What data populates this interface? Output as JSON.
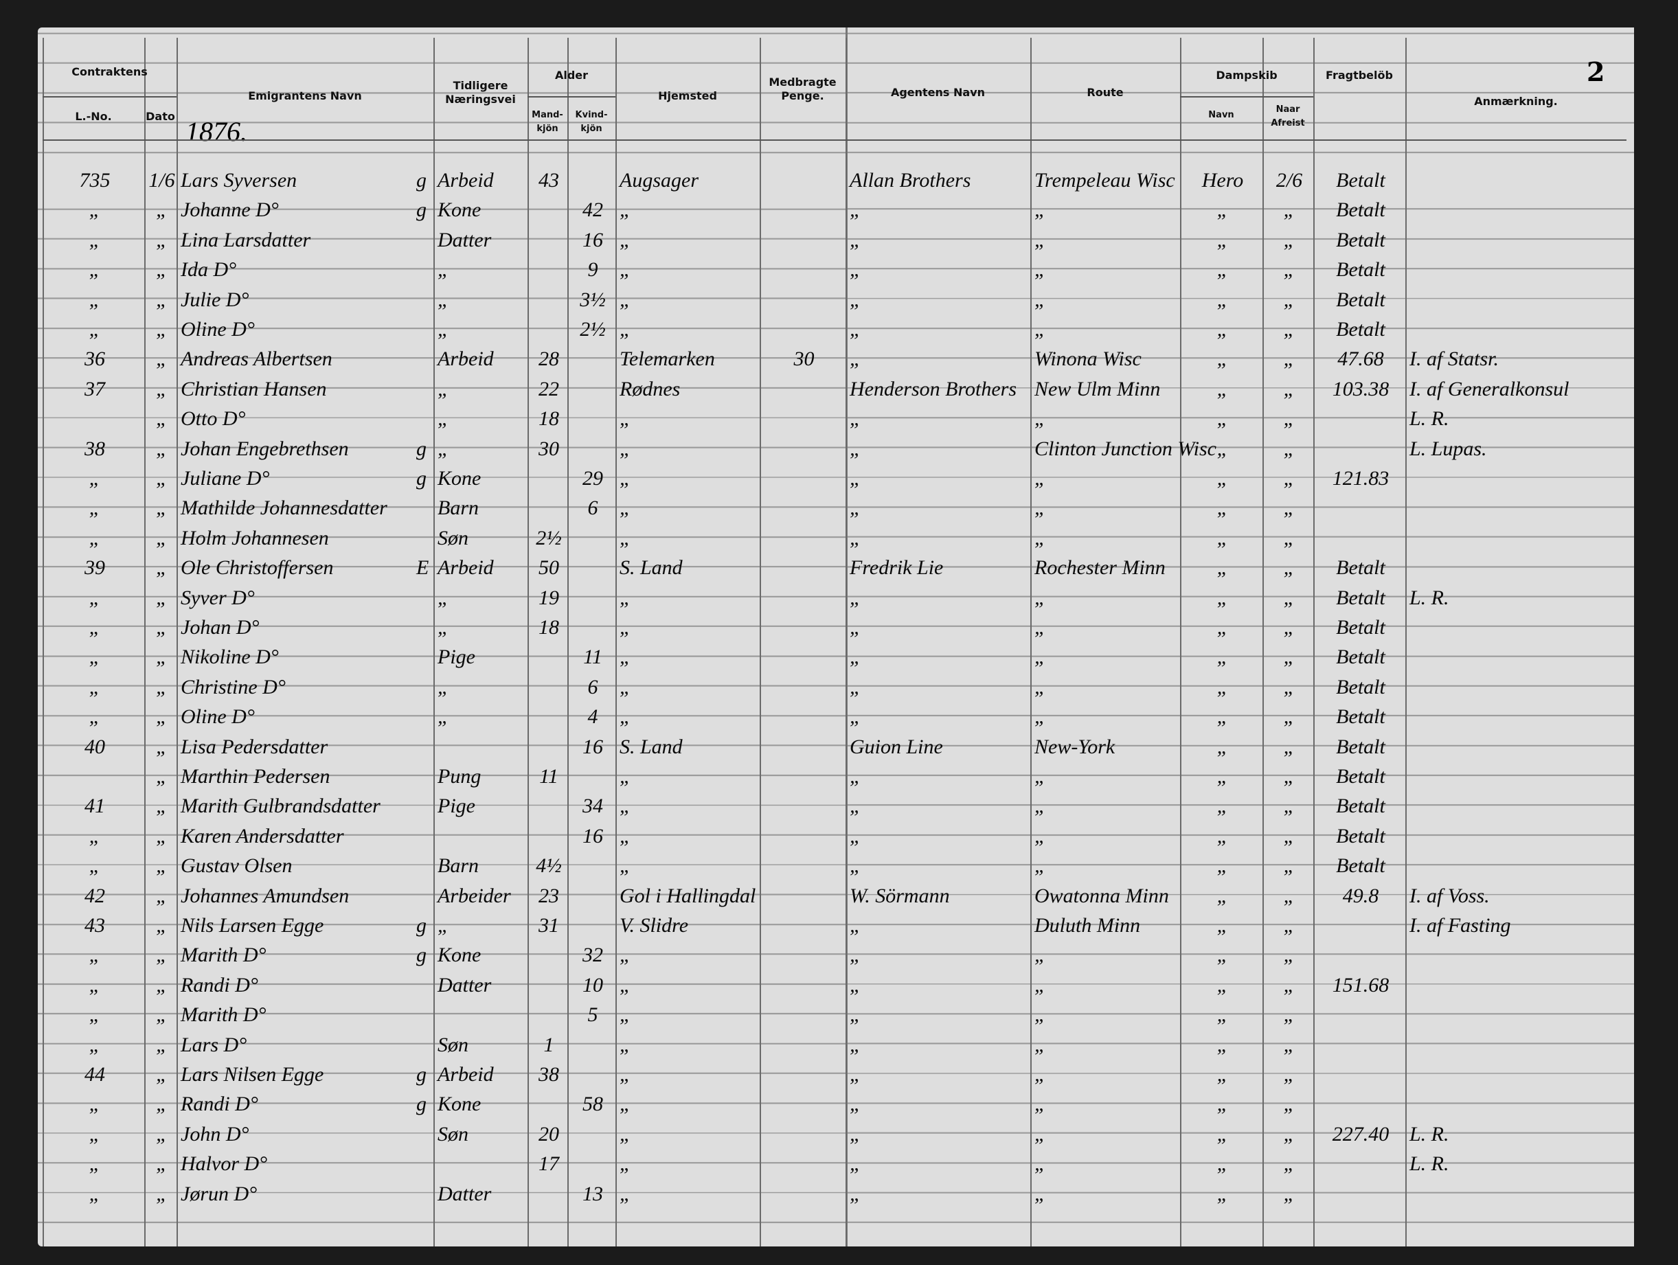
{
  "header": {
    "page_number": "2",
    "year": "1876.",
    "columns": {
      "contraktens": "Contraktens",
      "no": "L.-No.",
      "dato": "Dato",
      "navn": "Emigrantens Navn",
      "tidligere": "Tidligere Næringsvei",
      "alder": "Alder",
      "mand": "Mand-kjön",
      "kvind": "Kvind-kjön",
      "hjemsted": "Hjemsted",
      "penge": "Medbragte Penge.",
      "agent": "Agentens Navn",
      "route": "Route",
      "dampskib": "Dampskib",
      "skib": "Navn",
      "afreist": "Naar Afreist",
      "fragt": "Fragtbelöb",
      "anm": "Anmærkning."
    }
  },
  "rows": [
    {
      "no": "735",
      "dato": "1/6",
      "navn": "Lars Syversen",
      "g": "g",
      "tidligere": "Arbeid",
      "mand": "43",
      "hjemsted": "Augsager",
      "agent": "Allan Brothers",
      "route": "Trempeleau Wisc",
      "skib": "Hero",
      "afreist": "2/6",
      "fragt": "Betalt"
    },
    {
      "no": "„",
      "dato": "„",
      "navn": "Johanne D°",
      "g": "g",
      "tidligere": "Kone",
      "kvind": "42",
      "hjemsted": "„",
      "agent": "„",
      "route": "„",
      "skib": "„",
      "afreist": "„",
      "fragt": "Betalt"
    },
    {
      "no": "„",
      "dato": "„",
      "navn": "Lina Larsdatter",
      "tidligere": "Datter",
      "kvind": "16",
      "hjemsted": "„",
      "agent": "„",
      "route": "„",
      "skib": "„",
      "afreist": "„",
      "fragt": "Betalt"
    },
    {
      "no": "„",
      "dato": "„",
      "navn": "Ida D°",
      "tidligere": "„",
      "kvind": "9",
      "hjemsted": "„",
      "agent": "„",
      "route": "„",
      "skib": "„",
      "afreist": "„",
      "fragt": "Betalt"
    },
    {
      "no": "„",
      "dato": "„",
      "navn": "Julie D°",
      "tidligere": "„",
      "kvind": "3½",
      "hjemsted": "„",
      "agent": "„",
      "route": "„",
      "skib": "„",
      "afreist": "„",
      "fragt": "Betalt"
    },
    {
      "no": "„",
      "dato": "„",
      "navn": "Oline D°",
      "tidligere": "„",
      "kvind": "2½",
      "hjemsted": "„",
      "agent": "„",
      "route": "„",
      "skib": "„",
      "afreist": "„",
      "fragt": "Betalt"
    },
    {
      "no": "36",
      "dato": "„",
      "navn": "Andreas Albertsen",
      "tidligere": "Arbeid",
      "mand": "28",
      "hjemsted": "Telemarken",
      "penge": "30",
      "agent": "„",
      "route": "Winona Wisc",
      "skib": "„",
      "afreist": "„",
      "fragt": "47.68",
      "anm": "I. af Statsr."
    },
    {
      "no": "37",
      "dato": "„",
      "navn": "Christian Hansen",
      "tidligere": "„",
      "mand": "22",
      "hjemsted": "Rødnes",
      "agent": "Henderson Brothers",
      "route": "New Ulm Minn",
      "skib": "„",
      "afreist": "„",
      "fragt": "103.38",
      "anm": "I. af Generalkonsul"
    },
    {
      "dato": "„",
      "navn": "Otto D°",
      "tidligere": "„",
      "mand": "18",
      "hjemsted": "„",
      "agent": "„",
      "route": "„",
      "skib": "„",
      "afreist": "„",
      "anm": "L. R."
    },
    {
      "no": "38",
      "dato": "„",
      "navn": "Johan Engebrethsen",
      "g": "g",
      "tidligere": "„",
      "mand": "30",
      "hjemsted": "„",
      "agent": "„",
      "route": "Clinton Junction Wisc",
      "skib": "„",
      "afreist": "„",
      "anm": "L. Lupas."
    },
    {
      "no": "„",
      "dato": "„",
      "navn": "Juliane D°",
      "g": "g",
      "tidligere": "Kone",
      "kvind": "29",
      "hjemsted": "„",
      "agent": "„",
      "route": "„",
      "skib": "„",
      "afreist": "„",
      "fragt": "121.83"
    },
    {
      "no": "„",
      "dato": "„",
      "navn": "Mathilde Johannesdatter",
      "tidligere": "Barn",
      "kvind": "6",
      "hjemsted": "„",
      "agent": "„",
      "route": "„",
      "skib": "„",
      "afreist": "„"
    },
    {
      "no": "„",
      "dato": "„",
      "navn": "Holm Johannesen",
      "tidligere": "Søn",
      "mand": "2½",
      "hjemsted": "„",
      "agent": "„",
      "route": "„",
      "skib": "„",
      "afreist": "„"
    },
    {
      "no": "39",
      "dato": "„",
      "navn": "Ole Christoffersen",
      "g": "E",
      "tidligere": "Arbeid",
      "mand": "50",
      "hjemsted": "S. Land",
      "agent": "Fredrik Lie",
      "route": "Rochester Minn",
      "skib": "„",
      "afreist": "„",
      "fragt": "Betalt"
    },
    {
      "no": "„",
      "dato": "„",
      "navn": "Syver D°",
      "tidligere": "„",
      "mand": "19",
      "hjemsted": "„",
      "agent": "„",
      "route": "„",
      "skib": "„",
      "afreist": "„",
      "fragt": "Betalt",
      "anm": "L. R."
    },
    {
      "no": "„",
      "dato": "„",
      "navn": "Johan D°",
      "tidligere": "„",
      "mand": "18",
      "hjemsted": "„",
      "agent": "„",
      "route": "„",
      "skib": "„",
      "afreist": "„",
      "fragt": "Betalt"
    },
    {
      "no": "„",
      "dato": "„",
      "navn": "Nikoline D°",
      "tidligere": "Pige",
      "kvind": "11",
      "hjemsted": "„",
      "agent": "„",
      "route": "„",
      "skib": "„",
      "afreist": "„",
      "fragt": "Betalt"
    },
    {
      "no": "„",
      "dato": "„",
      "navn": "Christine D°",
      "tidligere": "„",
      "kvind": "6",
      "hjemsted": "„",
      "agent": "„",
      "route": "„",
      "skib": "„",
      "afreist": "„",
      "fragt": "Betalt"
    },
    {
      "no": "„",
      "dato": "„",
      "navn": "Oline D°",
      "tidligere": "„",
      "kvind": "4",
      "hjemsted": "„",
      "agent": "„",
      "route": "„",
      "skib": "„",
      "afreist": "„",
      "fragt": "Betalt"
    },
    {
      "no": "40",
      "dato": "„",
      "navn": "Lisa Pedersdatter",
      "kvind": "16",
      "hjemsted": "S. Land",
      "agent": "Guion Line",
      "route": "New-York",
      "skib": "„",
      "afreist": "„",
      "fragt": "Betalt"
    },
    {
      "dato": "„",
      "navn": "Marthin Pedersen",
      "tidligere": "Pung",
      "mand": "11",
      "hjemsted": "„",
      "agent": "„",
      "route": "„",
      "skib": "„",
      "afreist": "„",
      "fragt": "Betalt"
    },
    {
      "no": "41",
      "dato": "„",
      "navn": "Marith Gulbrandsdatter",
      "tidligere": "Pige",
      "kvind": "34",
      "hjemsted": "„",
      "agent": "„",
      "route": "„",
      "skib": "„",
      "afreist": "„",
      "fragt": "Betalt"
    },
    {
      "no": "„",
      "dato": "„",
      "navn": "Karen Andersdatter",
      "kvind": "16",
      "hjemsted": "„",
      "agent": "„",
      "route": "„",
      "skib": "„",
      "afreist": "„",
      "fragt": "Betalt"
    },
    {
      "no": "„",
      "dato": "„",
      "navn": "Gustav Olsen",
      "tidligere": "Barn",
      "mand": "4½",
      "hjemsted": "„",
      "agent": "„",
      "route": "„",
      "skib": "„",
      "afreist": "„",
      "fragt": "Betalt"
    },
    {
      "no": "42",
      "dato": "„",
      "navn": "Johannes Amundsen",
      "tidligere": "Arbeider",
      "mand": "23",
      "hjemsted": "Gol i Hallingdal",
      "agent": "W. Sörmann",
      "route": "Owatonna Minn",
      "skib": "„",
      "afreist": "„",
      "fragt": "49.8",
      "anm": "I. af Voss."
    },
    {
      "no": "43",
      "dato": "„",
      "navn": "Nils Larsen Egge",
      "g": "g",
      "tidligere": "„",
      "mand": "31",
      "hjemsted": "V. Slidre",
      "agent": "„",
      "route": "Duluth Minn",
      "skib": "„",
      "afreist": "„",
      "anm": "I. af Fasting"
    },
    {
      "no": "„",
      "dato": "„",
      "navn": "Marith D°",
      "g": "g",
      "tidligere": "Kone",
      "kvind": "32",
      "hjemsted": "„",
      "agent": "„",
      "route": "„",
      "skib": "„",
      "afreist": "„"
    },
    {
      "no": "„",
      "dato": "„",
      "navn": "Randi D°",
      "tidligere": "Datter",
      "kvind": "10",
      "hjemsted": "„",
      "agent": "„",
      "route": "„",
      "skib": "„",
      "afreist": "„",
      "fragt": "151.68"
    },
    {
      "no": "„",
      "dato": "„",
      "navn": "Marith D°",
      "kvind": "5",
      "hjemsted": "„",
      "agent": "„",
      "route": "„",
      "skib": "„",
      "afreist": "„"
    },
    {
      "no": "„",
      "dato": "„",
      "navn": "Lars D°",
      "tidligere": "Søn",
      "mand": "1",
      "hjemsted": "„",
      "agent": "„",
      "route": "„",
      "skib": "„",
      "afreist": "„"
    },
    {
      "no": "44",
      "dato": "„",
      "navn": "Lars Nilsen Egge",
      "g": "g",
      "tidligere": "Arbeid",
      "mand": "38",
      "hjemsted": "„",
      "agent": "„",
      "route": "„",
      "skib": "„",
      "afreist": "„"
    },
    {
      "no": "„",
      "dato": "„",
      "navn": "Randi D°",
      "g": "g",
      "tidligere": "Kone",
      "kvind": "58",
      "hjemsted": "„",
      "agent": "„",
      "route": "„",
      "skib": "„",
      "afreist": "„"
    },
    {
      "no": "„",
      "dato": "„",
      "navn": "John D°",
      "tidligere": "Søn",
      "mand": "20",
      "hjemsted": "„",
      "agent": "„",
      "route": "„",
      "skib": "„",
      "afreist": "„",
      "fragt": "227.40",
      "anm": "L. R."
    },
    {
      "no": "„",
      "dato": "„",
      "navn": "Halvor D°",
      "mand": "17",
      "hjemsted": "„",
      "agent": "„",
      "route": "„",
      "skib": "„",
      "afreist": "„",
      "anm": "L. R."
    },
    {
      "no": "„",
      "dato": "„",
      "navn": "Jørun D°",
      "tidligere": "Datter",
      "kvind": "13",
      "hjemsted": "„",
      "agent": "„",
      "route": "„",
      "skib": "„",
      "afreist": "„"
    }
  ]
}
